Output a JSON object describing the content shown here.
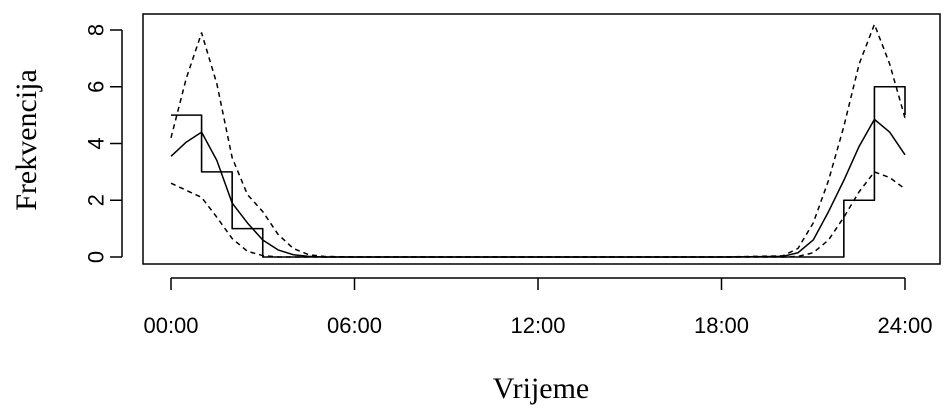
{
  "chart_data": {
    "type": "line",
    "xlabel": "Vrijeme",
    "ylabel": "Frekvencija",
    "xlim": [
      0,
      24
    ],
    "ylim": [
      -0.3,
      8.6
    ],
    "x_ticks": [
      0,
      6,
      12,
      18,
      24
    ],
    "x_tick_labels": [
      "00:00",
      "06:00",
      "12:00",
      "18:00",
      "24:00"
    ],
    "y_ticks": [
      0,
      2,
      4,
      6,
      8
    ],
    "y_tick_labels": [
      "0",
      "2",
      "4",
      "6",
      "8"
    ],
    "grid": false,
    "legend": "none",
    "series": [
      {
        "style": "step",
        "x": [
          0,
          1,
          2,
          3,
          4,
          5,
          6,
          7,
          8,
          9,
          10,
          11,
          12,
          13,
          14,
          15,
          16,
          17,
          18,
          19,
          20,
          21,
          22,
          23,
          24
        ],
        "values": [
          5,
          3,
          1,
          0,
          0,
          0,
          0,
          0,
          0,
          0,
          0,
          0,
          0,
          0,
          0,
          0,
          0,
          0,
          0,
          0,
          0,
          0,
          2,
          6,
          5
        ]
      },
      {
        "style": "solid",
        "x": [
          0,
          0.5,
          1,
          1.5,
          2,
          2.5,
          3,
          3.5,
          4,
          4.5,
          5,
          6,
          10,
          14,
          18,
          20,
          20.5,
          21,
          21.5,
          22,
          22.5,
          23,
          23.5,
          24
        ],
        "values": [
          3.55,
          4.05,
          4.4,
          3.4,
          1.9,
          1.2,
          0.6,
          0.25,
          0.08,
          0.02,
          0,
          0,
          0,
          0,
          0,
          0.02,
          0.15,
          0.6,
          1.6,
          2.7,
          3.9,
          4.85,
          4.4,
          3.6
        ]
      },
      {
        "style": "dashed",
        "x": [
          0,
          0.5,
          1,
          1.5,
          2,
          2.5,
          3,
          3.5,
          4,
          4.5,
          5,
          6,
          10,
          14,
          18,
          20,
          20.5,
          21,
          21.5,
          22,
          22.5,
          23,
          23.5,
          24
        ],
        "values": [
          4.2,
          6.3,
          7.9,
          6.1,
          3.5,
          2.2,
          1.6,
          0.8,
          0.3,
          0.08,
          0.02,
          0,
          0,
          0,
          0,
          0.04,
          0.3,
          1.2,
          2.7,
          4.6,
          6.8,
          8.2,
          6.8,
          4.9
        ]
      },
      {
        "style": "dashed",
        "x": [
          0,
          0.5,
          1,
          1.5,
          2,
          2.5,
          3,
          3.5,
          4,
          4.5,
          5,
          6,
          10,
          14,
          18,
          20,
          20.5,
          21,
          21.5,
          22,
          22.5,
          23,
          23.5,
          24
        ],
        "values": [
          2.6,
          2.35,
          2.1,
          1.4,
          0.65,
          0.2,
          0.05,
          0,
          0,
          0,
          0,
          0,
          0,
          0,
          0,
          0,
          0.02,
          0.15,
          0.6,
          1.4,
          2.3,
          3.0,
          2.8,
          2.4
        ]
      }
    ]
  }
}
